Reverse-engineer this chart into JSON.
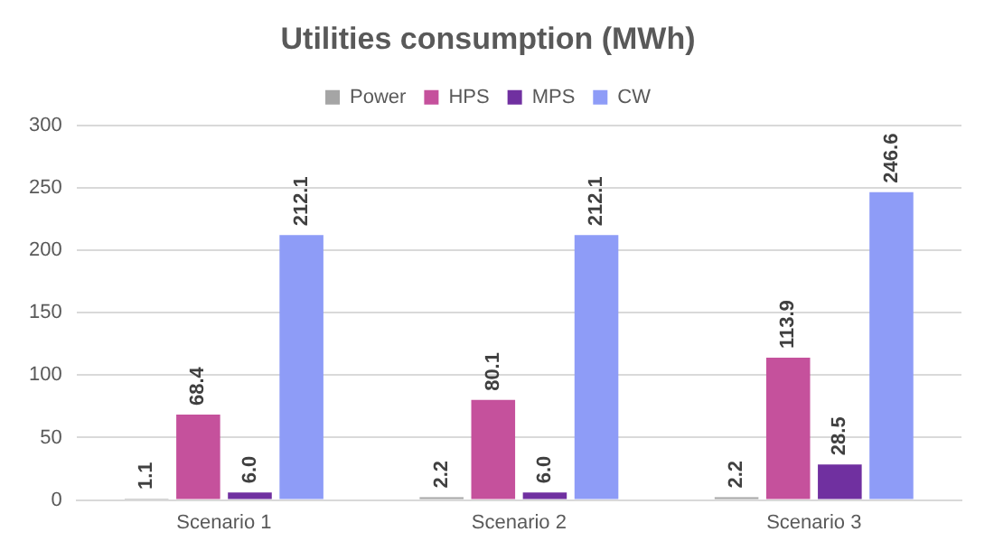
{
  "chart_data": {
    "type": "bar",
    "title": "Utilities consumption (MWh)",
    "categories": [
      "Scenario 1",
      "Scenario 2",
      "Scenario 3"
    ],
    "series": [
      {
        "name": "Power",
        "color": "#a5a5a5",
        "values": [
          1.1,
          2.2,
          2.2
        ],
        "value_labels": [
          "1.1",
          "2.2",
          "2.2"
        ]
      },
      {
        "name": "HPS",
        "color": "#c5519c",
        "values": [
          68.4,
          80.1,
          113.9
        ],
        "value_labels": [
          "68.4",
          "80.1",
          "113.9"
        ]
      },
      {
        "name": "MPS",
        "color": "#7030a0",
        "values": [
          6.0,
          6.0,
          28.5
        ],
        "value_labels": [
          "6.0",
          "6.0",
          "28.5"
        ]
      },
      {
        "name": "CW",
        "color": "#8e9cf7",
        "values": [
          212.1,
          212.1,
          246.6
        ],
        "value_labels": [
          "212.1",
          "212.1",
          "246.6"
        ]
      }
    ],
    "ylim": [
      0,
      300
    ],
    "yticks": [
      0,
      50,
      100,
      150,
      200,
      250,
      300
    ],
    "grid": "y",
    "legend": "top"
  }
}
